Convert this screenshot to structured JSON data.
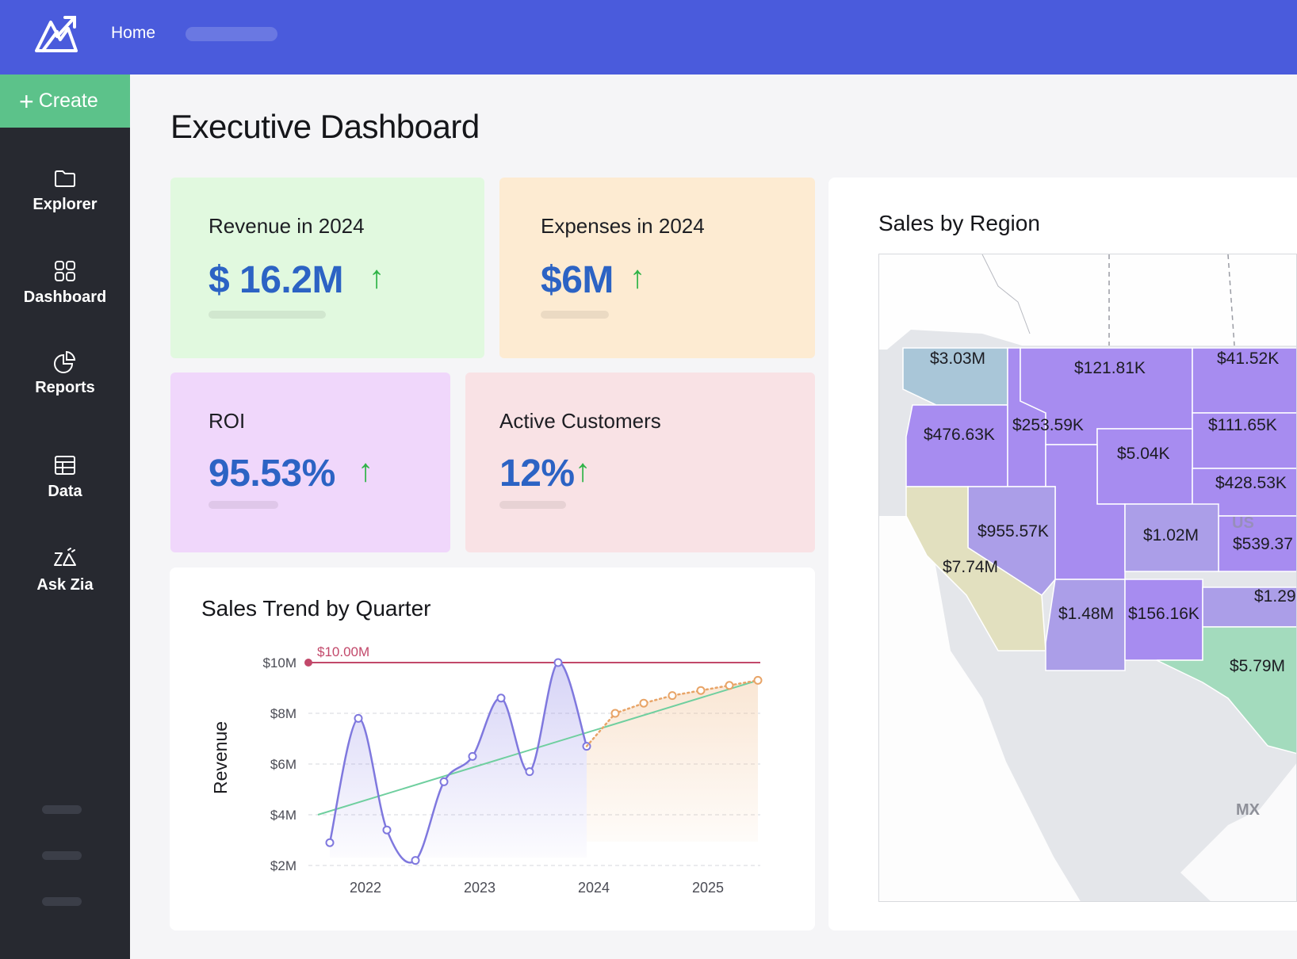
{
  "header": {
    "home_label": "Home"
  },
  "sidebar": {
    "create_label": "Create",
    "items": [
      {
        "label": "Explorer",
        "icon": "folder-icon"
      },
      {
        "label": "Dashboard",
        "icon": "grid-icon"
      },
      {
        "label": "Reports",
        "icon": "pie-chart-icon"
      },
      {
        "label": "Data",
        "icon": "table-icon"
      },
      {
        "label": "Ask Zia",
        "icon": "zia-icon"
      }
    ]
  },
  "main": {
    "title": "Executive Dashboard",
    "kpis": [
      {
        "label": "Revenue in 2024",
        "value": "$ 16.2M",
        "trend": "up",
        "bg": "#e1f9df"
      },
      {
        "label": "Expenses in 2024",
        "value": "$6M",
        "trend": "up",
        "bg": "#fdebd2"
      },
      {
        "label": "ROI",
        "value": "95.53%",
        "trend": "up",
        "bg": "#f0d7fb"
      },
      {
        "label": "Active Customers",
        "value": "12%",
        "trend": "up",
        "bg": "#f9e2e5"
      }
    ],
    "map": {
      "title": "Sales by Region",
      "regions": [
        {
          "label": "$3.03M"
        },
        {
          "label": "$121.81K"
        },
        {
          "label": "$41.52K"
        },
        {
          "label": "$476.63K"
        },
        {
          "label": "$253.59K"
        },
        {
          "label": "$111.65K"
        },
        {
          "label": "$5.04K"
        },
        {
          "label": "$428.53K"
        },
        {
          "label": "$955.57K"
        },
        {
          "label": "$1.02M"
        },
        {
          "label": "$539.37"
        },
        {
          "label": "$7.74M"
        },
        {
          "label": "$1.29"
        },
        {
          "label": "$1.48M"
        },
        {
          "label": "$156.16K"
        },
        {
          "label": "$5.79M"
        }
      ],
      "country_labels": [
        "US",
        "MX"
      ]
    }
  },
  "chart_data": {
    "type": "line",
    "title": "Sales Trend by Quarter",
    "xlabel": "",
    "ylabel": "Revenue",
    "x_ticks": [
      "2022",
      "2023",
      "2024",
      "2025"
    ],
    "y_ticks": [
      "$2M",
      "$4M",
      "$6M",
      "$8M",
      "$10M"
    ],
    "ylim": [
      2,
      10
    ],
    "y_unit": "$M",
    "grid": "horizontal-dashed",
    "target_line": {
      "value": 10,
      "label": "$10.00M",
      "color": "#c2486a"
    },
    "series": [
      {
        "kind": "actual",
        "color": "#7f78de",
        "x": [
          "2021-Q4",
          "2022-Q1",
          "2022-Q2",
          "2022-Q3",
          "2022-Q4",
          "2023-Q1",
          "2023-Q2",
          "2023-Q3",
          "2023-Q4",
          "2024-Q1"
        ],
        "values": [
          2.9,
          7.8,
          3.4,
          2.2,
          5.3,
          6.3,
          8.6,
          5.7,
          10.0,
          6.7
        ]
      },
      {
        "kind": "forecast",
        "color": "#e8a467",
        "x": [
          "2024-Q1",
          "2024-Q2",
          "2024-Q3",
          "2024-Q4",
          "2025-Q1",
          "2025-Q2",
          "2025-Q3"
        ],
        "values": [
          6.7,
          8.0,
          8.4,
          8.7,
          8.9,
          9.1,
          9.3
        ]
      },
      {
        "kind": "trendline",
        "color": "#6fcf9f",
        "x": [
          "2021-Q4",
          "2025-Q3"
        ],
        "values": [
          4.0,
          9.3
        ]
      }
    ]
  }
}
